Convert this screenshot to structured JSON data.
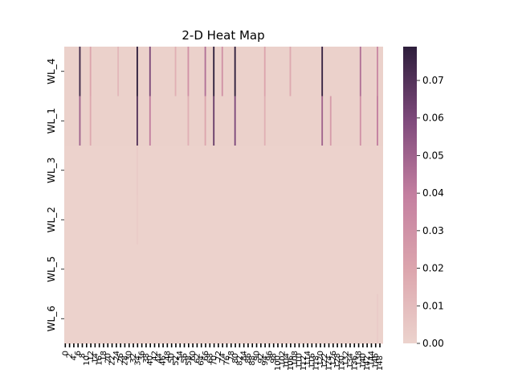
{
  "chart_data": {
    "type": "heatmap",
    "title": "2-D Heat Map",
    "xlabel": "",
    "ylabel": "",
    "rows": [
      "WL_4",
      "WL_1",
      "WL_3",
      "WL_2",
      "WL_5",
      "WL_6"
    ],
    "n_columns": 150,
    "colorbar": {
      "range": [
        0.0,
        0.079
      ],
      "ticks": [
        "0.00",
        "0.01",
        "0.02",
        "0.03",
        "0.04",
        "0.05",
        "0.06",
        "0.07"
      ],
      "colors": {
        "low": "#ecd3cd",
        "mid": "#c47fa0",
        "high": "#2e1e3c"
      }
    },
    "row_profiles": {
      "WL_4": {
        "baseline": 0.001,
        "spikes": [
          {
            "col": 7,
            "value": 0.075
          },
          {
            "col": 12,
            "value": 0.02
          },
          {
            "col": 25,
            "value": 0.012
          },
          {
            "col": 34,
            "value": 0.079
          },
          {
            "col": 40,
            "value": 0.06
          },
          {
            "col": 52,
            "value": 0.015
          },
          {
            "col": 58,
            "value": 0.03
          },
          {
            "col": 66,
            "value": 0.045
          },
          {
            "col": 70,
            "value": 0.079
          },
          {
            "col": 74,
            "value": 0.03
          },
          {
            "col": 80,
            "value": 0.079
          },
          {
            "col": 94,
            "value": 0.02
          },
          {
            "col": 106,
            "value": 0.018
          },
          {
            "col": 121,
            "value": 0.077
          },
          {
            "col": 139,
            "value": 0.045
          },
          {
            "col": 147,
            "value": 0.035
          }
        ]
      },
      "WL_1": {
        "baseline": 0.001,
        "spikes": [
          {
            "col": 7,
            "value": 0.05
          },
          {
            "col": 12,
            "value": 0.018
          },
          {
            "col": 34,
            "value": 0.07
          },
          {
            "col": 40,
            "value": 0.04
          },
          {
            "col": 58,
            "value": 0.015
          },
          {
            "col": 66,
            "value": 0.02
          },
          {
            "col": 70,
            "value": 0.065
          },
          {
            "col": 80,
            "value": 0.06
          },
          {
            "col": 94,
            "value": 0.015
          },
          {
            "col": 121,
            "value": 0.05
          },
          {
            "col": 125,
            "value": 0.025
          },
          {
            "col": 139,
            "value": 0.03
          },
          {
            "col": 147,
            "value": 0.04
          }
        ]
      },
      "WL_3": {
        "baseline": 0.0005,
        "spikes": [
          {
            "col": 34,
            "value": 0.004
          }
        ]
      },
      "WL_2": {
        "baseline": 0.0005,
        "spikes": [
          {
            "col": 34,
            "value": 0.003
          }
        ]
      },
      "WL_5": {
        "baseline": 0.0005,
        "spikes": []
      },
      "WL_6": {
        "baseline": 0.0005,
        "spikes": [
          {
            "col": 147,
            "value": 0.003
          }
        ]
      }
    }
  }
}
